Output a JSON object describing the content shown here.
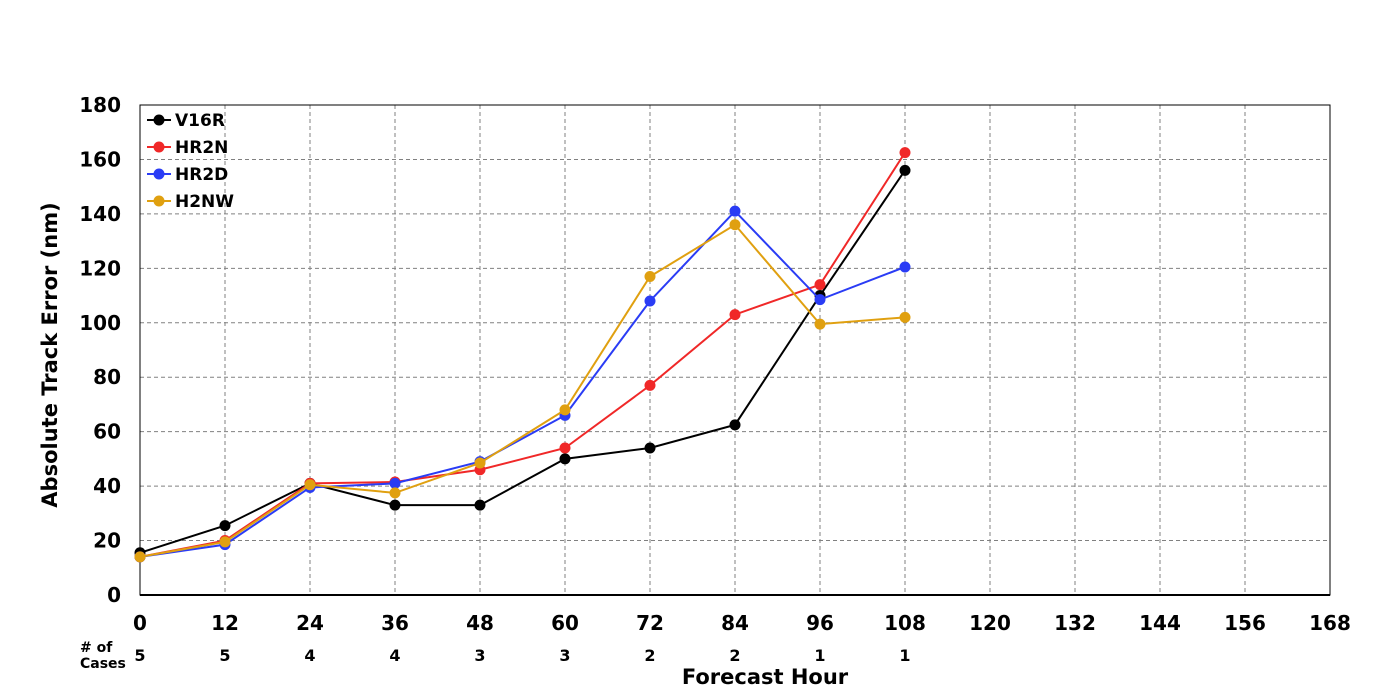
{
  "chart_data": {
    "type": "line",
    "title": "",
    "xlabel": "Forecast Hour",
    "ylabel": "Absolute Track Error (nm)",
    "xlim": [
      0,
      168
    ],
    "ylim": [
      0,
      180
    ],
    "x_ticks": [
      0,
      12,
      24,
      36,
      48,
      60,
      72,
      84,
      96,
      108,
      120,
      132,
      144,
      156,
      168
    ],
    "y_ticks": [
      0,
      20,
      40,
      60,
      80,
      100,
      120,
      140,
      160,
      180
    ],
    "grid": true,
    "legend_position": "top-left",
    "x": [
      0,
      12,
      24,
      36,
      48,
      60,
      72,
      84,
      96,
      108
    ],
    "series": [
      {
        "name": "V16R",
        "color": "#000000",
        "values": [
          15.5,
          25.5,
          41,
          33,
          33,
          50,
          54,
          62.5,
          110,
          156
        ]
      },
      {
        "name": "HR2N",
        "color": "#f02828",
        "values": [
          14,
          20,
          41,
          41.5,
          46,
          54,
          77,
          103,
          114,
          162.5
        ]
      },
      {
        "name": "HR2D",
        "color": "#2a3cf5",
        "values": [
          14,
          18.5,
          39.5,
          41,
          49,
          66,
          108,
          141,
          108.5,
          120.5
        ]
      },
      {
        "name": "H2NW",
        "color": "#e0a010",
        "values": [
          14,
          19.5,
          40.5,
          37.5,
          48.5,
          68,
          117,
          136,
          99.5,
          102
        ]
      }
    ],
    "cases_label": "# of\nCases",
    "cases": [
      {
        "x": 0,
        "label": "5"
      },
      {
        "x": 12,
        "label": "5"
      },
      {
        "x": 24,
        "label": "4"
      },
      {
        "x": 36,
        "label": "4"
      },
      {
        "x": 48,
        "label": "3"
      },
      {
        "x": 60,
        "label": "3"
      },
      {
        "x": 72,
        "label": "2"
      },
      {
        "x": 84,
        "label": "2"
      },
      {
        "x": 96,
        "label": "1"
      },
      {
        "x": 108,
        "label": "1"
      }
    ]
  }
}
